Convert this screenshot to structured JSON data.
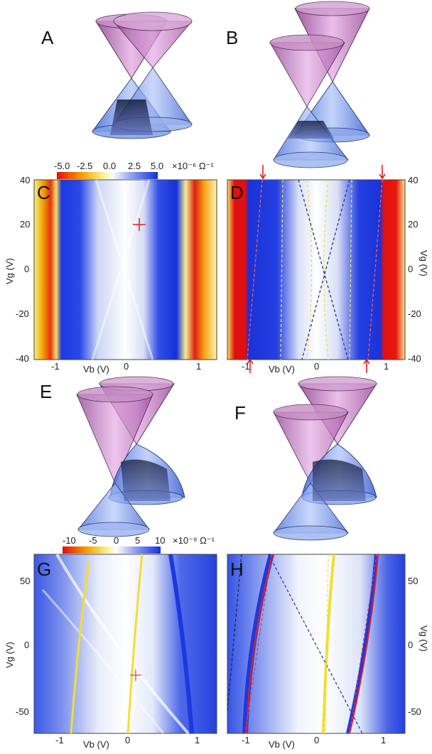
{
  "panels": {
    "A": "A",
    "B": "B",
    "C": "C",
    "D": "D",
    "E": "E",
    "F": "F",
    "G": "G",
    "H": "H"
  },
  "colorbar_top": {
    "ticks": [
      "-5.0",
      "-2.5",
      "0.0",
      "2.5",
      "5.0"
    ],
    "unit": "×10⁻⁶ Ω⁻¹"
  },
  "colorbar_bottom": {
    "ticks": [
      "-10",
      "-5",
      "0",
      "5",
      "10"
    ],
    "unit": "×10⁻⁹ Ω⁻¹"
  },
  "top_maps": {
    "ylabel": "Vg (V)",
    "xlabel": "Vb (V)",
    "yticks": [
      "40",
      "20",
      "0",
      "-20",
      "-40"
    ],
    "xticks_C": [
      "-1",
      "0",
      "1"
    ],
    "xticks_D": [
      "-1",
      "0",
      "1"
    ]
  },
  "bottom_maps": {
    "ylabel": "Vg (V)",
    "xlabel": "Vb (V)",
    "yticks": [
      "50",
      "0",
      "-50"
    ],
    "xticks_G": [
      "-1",
      "0",
      "1"
    ],
    "xticks_H": [
      "-1",
      "0",
      "1"
    ]
  },
  "colors": {
    "cone_upper": "#b46fb4",
    "cone_lower": "#5a86e6",
    "map_blue": "#1430d8",
    "map_red": "#e01010",
    "map_yellow": "#f0e020"
  }
}
